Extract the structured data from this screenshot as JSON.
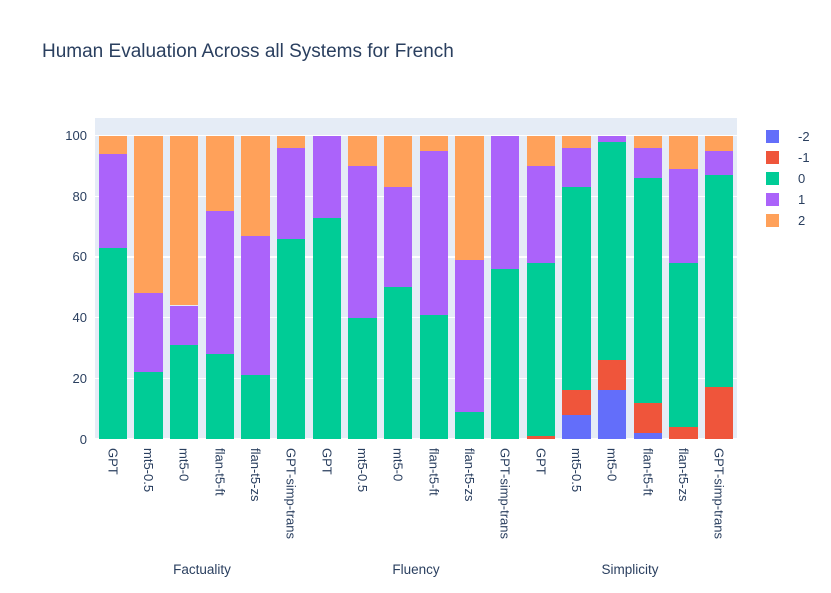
{
  "colors": {
    "text": "#2a3f5f",
    "plot_bg": "#e5ecf6",
    "grid": "#ffffff",
    "paper": "#ffffff"
  },
  "chart_data": {
    "type": "bar",
    "stacked": true,
    "title": "Human Evaluation Across all Systems for French",
    "groups": [
      "Factuality",
      "Fluency",
      "Simplicity"
    ],
    "categories": [
      "GPT",
      "mt5-0.5",
      "mt5-0",
      "flan-t5-ft",
      "flan-t5-zs",
      "GPT-simp-trans"
    ],
    "yticks": [
      0,
      20,
      40,
      60,
      80,
      100
    ],
    "ylim": [
      0,
      105.8
    ],
    "grid": true,
    "legend_position": "right",
    "legend_title": "",
    "series": [
      {
        "name": "-2",
        "color": "#636efa",
        "values": [
          [
            0,
            0,
            0,
            0,
            0,
            0
          ],
          [
            0,
            0,
            0,
            0,
            0,
            0
          ],
          [
            0,
            8,
            16,
            2,
            0,
            0
          ]
        ]
      },
      {
        "name": "-1",
        "color": "#ef553b",
        "values": [
          [
            0,
            0,
            0,
            0,
            0,
            0
          ],
          [
            0,
            0,
            0,
            0,
            0,
            0
          ],
          [
            1,
            8,
            10,
            10,
            4,
            17
          ]
        ]
      },
      {
        "name": "0",
        "color": "#00cc96",
        "values": [
          [
            63,
            22,
            31,
            28,
            21,
            66
          ],
          [
            73,
            40,
            50,
            41,
            9,
            56
          ],
          [
            57,
            67,
            72,
            74,
            54,
            70
          ]
        ]
      },
      {
        "name": "1",
        "color": "#ab63fa",
        "values": [
          [
            31,
            26,
            13,
            47,
            46,
            30
          ],
          [
            27,
            50,
            33,
            54,
            50,
            44
          ],
          [
            32,
            13,
            2,
            10,
            31,
            8
          ]
        ]
      },
      {
        "name": "2",
        "color": "#ffa15a",
        "values": [
          [
            6,
            52,
            56,
            25,
            33,
            4
          ],
          [
            0,
            10,
            17,
            5,
            41,
            0
          ],
          [
            10,
            4,
            0,
            4,
            11,
            5
          ]
        ]
      }
    ]
  }
}
